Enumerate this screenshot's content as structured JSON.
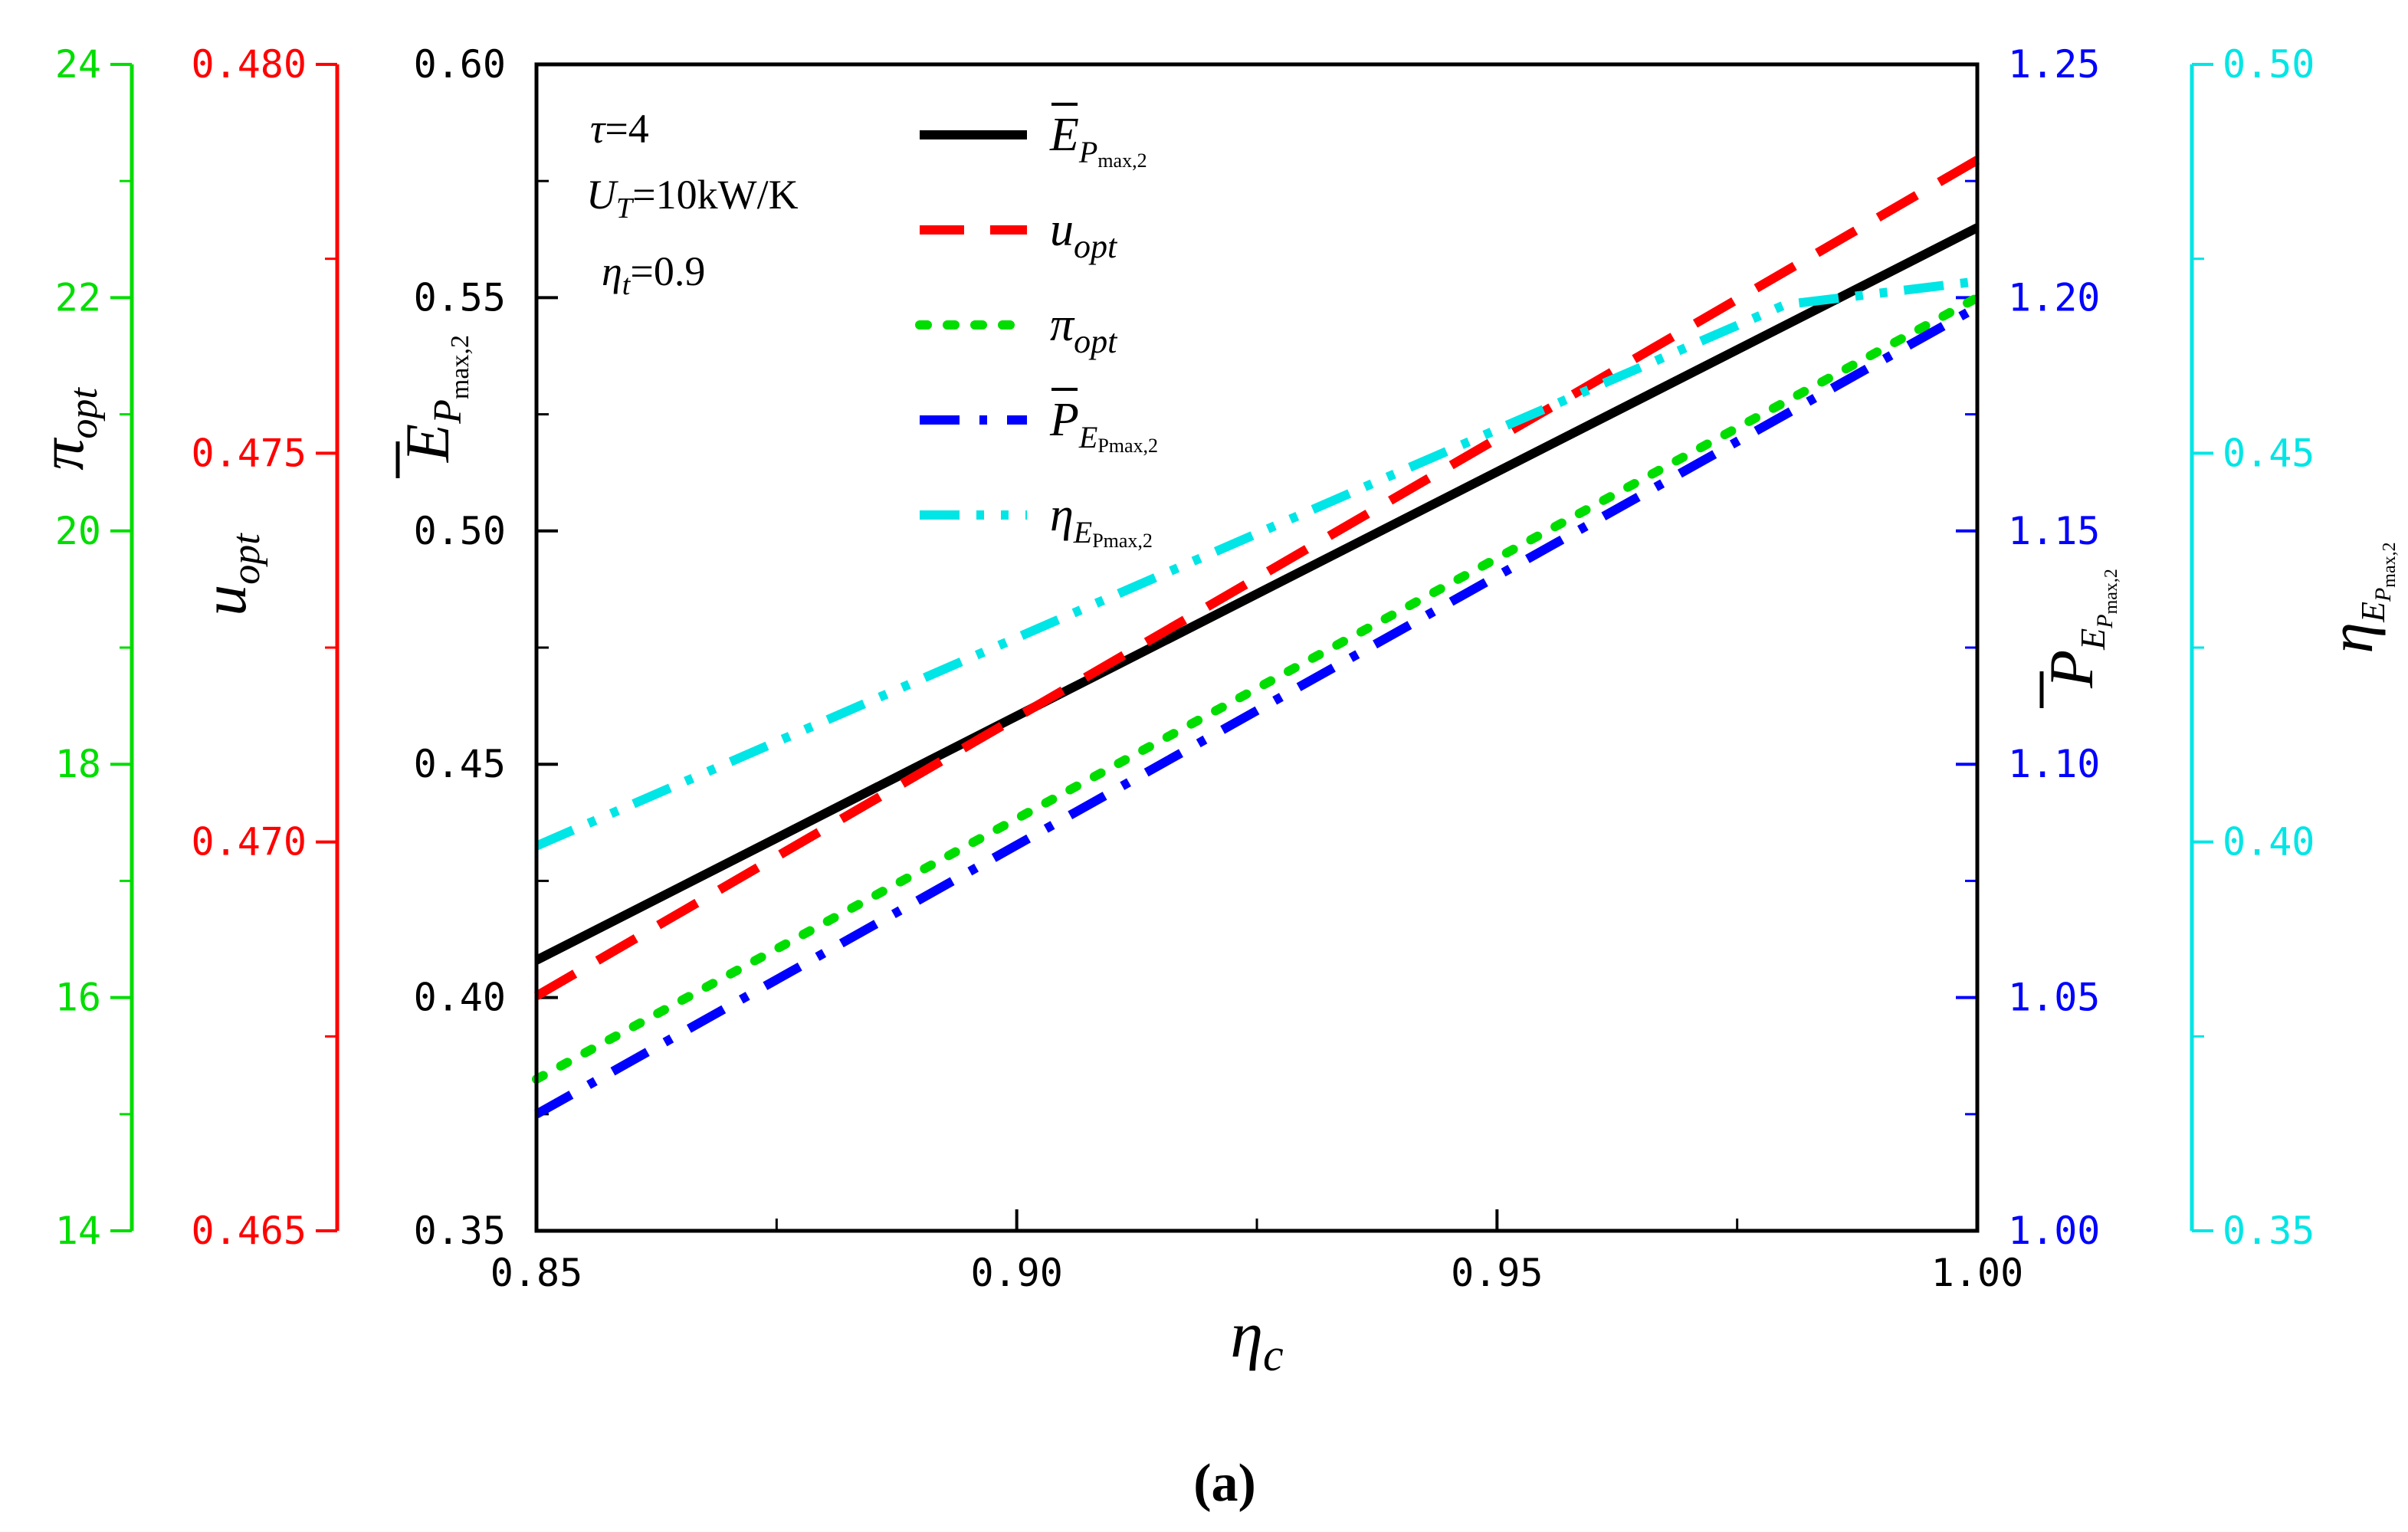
{
  "chart_data": {
    "type": "line",
    "subfigure_label": "(a)",
    "annotations": {
      "tau": "τ=4",
      "ut": "U_T=10kW/K",
      "eta_t": "η_t=0.9"
    },
    "x": [
      0.85,
      1.0
    ],
    "xlabel": "η_c",
    "xlim": [
      0.85,
      1.0
    ],
    "xticks": [
      "0.85",
      "0.90",
      "0.95",
      "1.00"
    ],
    "axes": [
      {
        "id": "E",
        "label": "Ē_Pmax,2",
        "side": "left",
        "color": "#000000",
        "ylim": [
          0.35,
          0.6
        ],
        "ticks": [
          "0.35",
          "0.40",
          "0.45",
          "0.50",
          "0.55",
          "0.60"
        ]
      },
      {
        "id": "u",
        "label": "u_opt",
        "side": "left",
        "color": "#ff0000",
        "ylim": [
          0.465,
          0.48
        ],
        "ticks": [
          "0.465",
          "0.470",
          "0.475",
          "0.480"
        ]
      },
      {
        "id": "pi",
        "label": "π_opt",
        "side": "left",
        "color": "#00dd00",
        "ylim": [
          14,
          24
        ],
        "ticks": [
          "14",
          "16",
          "18",
          "20",
          "22",
          "24"
        ]
      },
      {
        "id": "P",
        "label": "P̄_ĒPmax,2",
        "side": "right",
        "color": "#0000ff",
        "ylim": [
          1.0,
          1.25
        ],
        "ticks": [
          "1.00",
          "1.05",
          "1.10",
          "1.15",
          "1.20",
          "1.25"
        ]
      },
      {
        "id": "eta",
        "label": "η_ĒPmax,2",
        "side": "right",
        "color": "#00e5e5",
        "ylim": [
          0.35,
          0.5
        ],
        "ticks": [
          "0.35",
          "0.40",
          "0.45",
          "0.50"
        ]
      }
    ],
    "series": [
      {
        "name": "Ē_Pmax,2",
        "axis": "E",
        "style": "solid",
        "color": "#000000",
        "x": [
          0.85,
          1.0
        ],
        "values": [
          0.408,
          0.565
        ]
      },
      {
        "name": "u_opt",
        "axis": "u",
        "style": "dash",
        "color": "#ff0000",
        "x": [
          0.85,
          1.0
        ],
        "values": [
          0.46802,
          0.47877
        ]
      },
      {
        "name": "π_opt",
        "axis": "pi",
        "style": "dot",
        "color": "#00dd00",
        "x": [
          0.85,
          1.0
        ],
        "values": [
          15.3,
          22.0
        ]
      },
      {
        "name": "P̄_ĒPmax,2",
        "axis": "P",
        "style": "dashdot",
        "color": "#0000ff",
        "x": [
          0.85,
          1.0
        ],
        "values": [
          1.025,
          1.198
        ]
      },
      {
        "name": "η_ĒPmax,2",
        "axis": "eta",
        "style": "dashdotdot",
        "color": "#00e5e5",
        "x": [
          0.85,
          0.98,
          1.0
        ],
        "values": [
          0.3995,
          0.4691,
          0.4721
        ]
      }
    ]
  }
}
